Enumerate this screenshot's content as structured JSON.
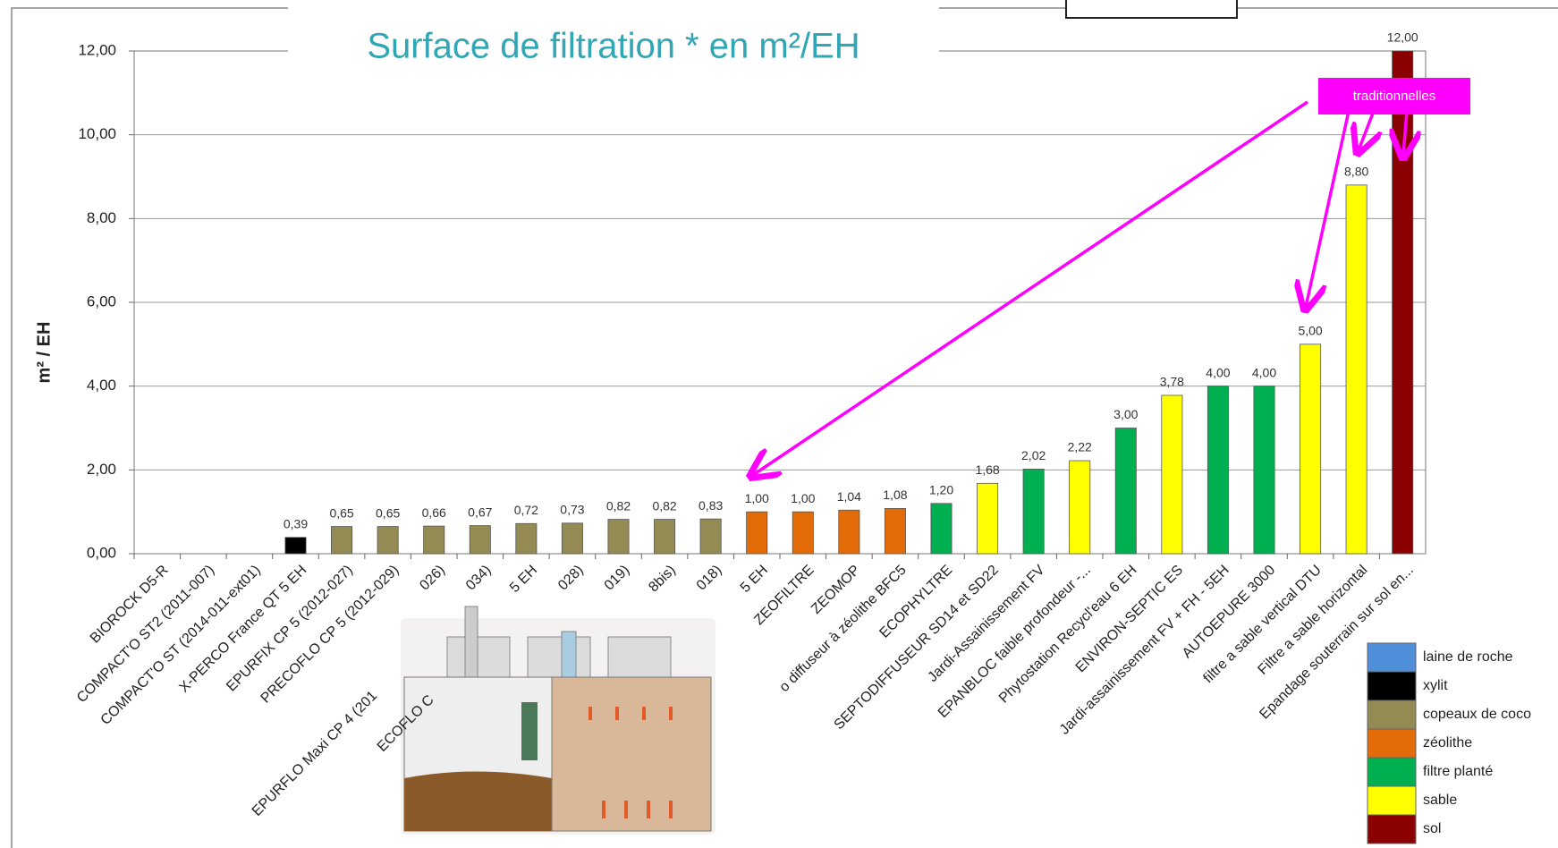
{
  "chart_data": {
    "type": "bar",
    "title": "Surface de filtration * en m²/EH",
    "y_label": "m² / EH",
    "annotation": "traditionnelles",
    "categories": [
      "BIOROCK D5-R",
      "COMPACT'O ST2 (2011-007)",
      "COMPACT'O ST (2014-011-ext01)",
      "X-PERCO France QT 5 EH",
      "EPURFIX CP 5 (2012-027)",
      "PRECOFLO CP 5 (2012-029)",
      "026)",
      "034)",
      "5 EH",
      "028)",
      "019)",
      "8bis)",
      "018)",
      "5 EH",
      "ZEOFILTRE",
      "ZEOMOP",
      "o diffuseur à zéolithe BFC5",
      "ECOPHYLTRE",
      "SEPTODIFFUSEUR SD14 et SD22",
      "Jardi-Assainissement  FV",
      "EPANBLOC faible profondeur -...",
      "Phytostation Recycl'eau 6 EH",
      "ENVIRON-SEPTIC ES",
      "Jardi-assainissement FV + FH - 5EH",
      "AUTOEPURE 3000",
      "filtre a sable vertical DTU",
      "Filtre a sable horizontal",
      "Epandage souterrain sur sol en..."
    ],
    "x_label_fragments": [
      "EPURFLO Maxi CP 4 (201",
      "ECOFLO C"
    ],
    "series": [
      {
        "name": "laine de roche",
        "color": "#4f8fd9",
        "values": [
          null,
          null,
          null,
          null,
          null,
          null,
          null,
          null,
          null,
          null,
          null,
          null,
          null,
          null,
          null,
          null,
          null,
          null,
          null,
          null,
          null,
          null,
          null,
          null,
          null,
          null,
          null,
          null
        ]
      },
      {
        "name": "xylit",
        "color": "#000000",
        "values": [
          null,
          null,
          null,
          0.39,
          null,
          null,
          null,
          null,
          null,
          null,
          null,
          null,
          null,
          null,
          null,
          null,
          null,
          null,
          null,
          null,
          null,
          null,
          null,
          null,
          null,
          null,
          null,
          null
        ],
        "value_labels": [
          null,
          null,
          null,
          "0,39",
          null,
          null,
          null,
          null,
          null,
          null,
          null,
          null,
          null,
          null,
          null,
          null,
          null,
          null,
          null,
          null,
          null,
          null,
          null,
          null,
          null,
          null,
          null,
          null
        ]
      },
      {
        "name": "copeaux de coco",
        "color": "#948a54",
        "values": [
          null,
          null,
          null,
          null,
          0.65,
          0.65,
          0.66,
          0.67,
          0.72,
          0.73,
          0.82,
          0.82,
          0.83,
          null,
          null,
          null,
          null,
          null,
          null,
          null,
          null,
          null,
          null,
          null,
          null,
          null,
          null,
          null
        ],
        "value_labels": [
          null,
          null,
          null,
          null,
          "0,65",
          "0,65",
          "0,66",
          "0,67",
          "0,72",
          "0,73",
          "0,82",
          "0,82",
          "0,83",
          null,
          null,
          null,
          null,
          null,
          null,
          null,
          null,
          null,
          null,
          null,
          null,
          null,
          null,
          null
        ]
      },
      {
        "name": "zéolithe",
        "color": "#e36c09",
        "values": [
          null,
          null,
          null,
          null,
          null,
          null,
          null,
          null,
          null,
          null,
          null,
          null,
          null,
          1.0,
          1.0,
          1.04,
          1.08,
          null,
          null,
          null,
          null,
          null,
          null,
          null,
          null,
          null,
          null,
          null
        ],
        "value_labels": [
          null,
          null,
          null,
          null,
          null,
          null,
          null,
          null,
          null,
          null,
          null,
          null,
          null,
          "1,00",
          "1,00",
          "1,04",
          "1,08",
          null,
          null,
          null,
          null,
          null,
          null,
          null,
          null,
          null,
          null,
          null
        ]
      },
      {
        "name": "filtre planté",
        "color": "#00b050",
        "values": [
          null,
          null,
          null,
          null,
          null,
          null,
          null,
          null,
          null,
          null,
          null,
          null,
          null,
          null,
          null,
          null,
          null,
          1.2,
          null,
          2.02,
          null,
          3.0,
          null,
          4.0,
          4.0,
          null,
          null,
          null
        ],
        "value_labels": [
          null,
          null,
          null,
          null,
          null,
          null,
          null,
          null,
          null,
          null,
          null,
          null,
          null,
          null,
          null,
          null,
          null,
          "1,20",
          null,
          "2,02",
          null,
          "3,00",
          null,
          "4,00",
          "4,00",
          null,
          null,
          null
        ]
      },
      {
        "name": "sable",
        "color": "#ffff00",
        "values": [
          null,
          null,
          null,
          null,
          null,
          null,
          null,
          null,
          null,
          null,
          null,
          null,
          null,
          null,
          null,
          null,
          null,
          null,
          1.68,
          null,
          2.22,
          null,
          3.78,
          null,
          null,
          5.0,
          8.8,
          null
        ],
        "value_labels": [
          null,
          null,
          null,
          null,
          null,
          null,
          null,
          null,
          null,
          null,
          null,
          null,
          null,
          null,
          null,
          null,
          null,
          null,
          "1,68",
          null,
          "2,22",
          null,
          "3,78",
          null,
          null,
          "5,00",
          "8,80",
          null
        ]
      },
      {
        "name": "sol",
        "color": "#8b0000",
        "values": [
          null,
          null,
          null,
          null,
          null,
          null,
          null,
          null,
          null,
          null,
          null,
          null,
          null,
          null,
          null,
          null,
          null,
          null,
          null,
          null,
          null,
          null,
          null,
          null,
          null,
          null,
          null,
          12.0
        ],
        "value_labels": [
          null,
          null,
          null,
          null,
          null,
          null,
          null,
          null,
          null,
          null,
          null,
          null,
          null,
          null,
          null,
          null,
          null,
          null,
          null,
          null,
          null,
          null,
          null,
          null,
          null,
          null,
          null,
          "12,00"
        ]
      }
    ],
    "ylim": [
      0,
      12
    ],
    "yticks": [
      {
        "value": 0,
        "label": "0,00"
      },
      {
        "value": 2,
        "label": "2,00"
      },
      {
        "value": 4,
        "label": "4,00"
      },
      {
        "value": 6,
        "label": "6,00"
      },
      {
        "value": 8,
        "label": "8,00"
      },
      {
        "value": 10,
        "label": "10,00"
      },
      {
        "value": 12,
        "label": "12,00"
      }
    ],
    "grid": true,
    "legend": "bottom-right"
  }
}
